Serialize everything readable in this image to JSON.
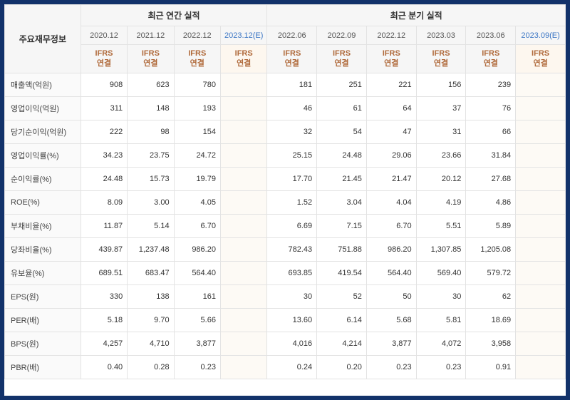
{
  "headers": {
    "row_label": "주요재무정보",
    "group_annual": "최근 연간 실적",
    "group_quarter": "최근 분기 실적",
    "annual_periods": [
      "2020.12",
      "2021.12",
      "2022.12",
      "2023.12(E)"
    ],
    "quarter_periods": [
      "2022.06",
      "2022.09",
      "2022.12",
      "2023.03",
      "2023.06",
      "2023.09(E)"
    ],
    "metric_label": "IFRS\n연결"
  },
  "rows": [
    {
      "label": "매출액(억원)",
      "a": [
        "908",
        "623",
        "780",
        ""
      ],
      "q": [
        "181",
        "251",
        "221",
        "156",
        "239",
        ""
      ]
    },
    {
      "label": "영업이익(억원)",
      "a": [
        "311",
        "148",
        "193",
        ""
      ],
      "q": [
        "46",
        "61",
        "64",
        "37",
        "76",
        ""
      ]
    },
    {
      "label": "당기순이익(억원)",
      "a": [
        "222",
        "98",
        "154",
        ""
      ],
      "q": [
        "32",
        "54",
        "47",
        "31",
        "66",
        ""
      ]
    },
    {
      "label": "영업이익률(%)",
      "a": [
        "34.23",
        "23.75",
        "24.72",
        ""
      ],
      "q": [
        "25.15",
        "24.48",
        "29.06",
        "23.66",
        "31.84",
        ""
      ]
    },
    {
      "label": "순이익률(%)",
      "a": [
        "24.48",
        "15.73",
        "19.79",
        ""
      ],
      "q": [
        "17.70",
        "21.45",
        "21.47",
        "20.12",
        "27.68",
        ""
      ]
    },
    {
      "label": "ROE(%)",
      "a": [
        "8.09",
        "3.00",
        "4.05",
        ""
      ],
      "q": [
        "1.52",
        "3.04",
        "4.04",
        "4.19",
        "4.86",
        ""
      ]
    },
    {
      "label": "부채비율(%)",
      "a": [
        "11.87",
        "5.14",
        "6.70",
        ""
      ],
      "q": [
        "6.69",
        "7.15",
        "6.70",
        "5.51",
        "5.89",
        ""
      ]
    },
    {
      "label": "당좌비율(%)",
      "a": [
        "439.87",
        "1,237.48",
        "986.20",
        ""
      ],
      "q": [
        "782.43",
        "751.88",
        "986.20",
        "1,307.85",
        "1,205.08",
        ""
      ]
    },
    {
      "label": "유보율(%)",
      "a": [
        "689.51",
        "683.47",
        "564.40",
        ""
      ],
      "q": [
        "693.85",
        "419.54",
        "564.40",
        "569.40",
        "579.72",
        ""
      ]
    },
    {
      "label": "EPS(원)",
      "a": [
        "330",
        "138",
        "161",
        ""
      ],
      "q": [
        "30",
        "52",
        "50",
        "30",
        "62",
        ""
      ]
    },
    {
      "label": "PER(배)",
      "a": [
        "5.18",
        "9.70",
        "5.66",
        ""
      ],
      "q": [
        "13.60",
        "6.14",
        "5.68",
        "5.81",
        "18.69",
        ""
      ]
    },
    {
      "label": "BPS(원)",
      "a": [
        "4,257",
        "4,710",
        "3,877",
        ""
      ],
      "q": [
        "4,016",
        "4,214",
        "3,877",
        "4,072",
        "3,958",
        ""
      ]
    },
    {
      "label": "PBR(배)",
      "a": [
        "0.40",
        "0.28",
        "0.23",
        ""
      ],
      "q": [
        "0.24",
        "0.20",
        "0.23",
        "0.23",
        "0.91",
        ""
      ]
    }
  ],
  "est_annual_index": 3,
  "est_quarter_index": 5
}
